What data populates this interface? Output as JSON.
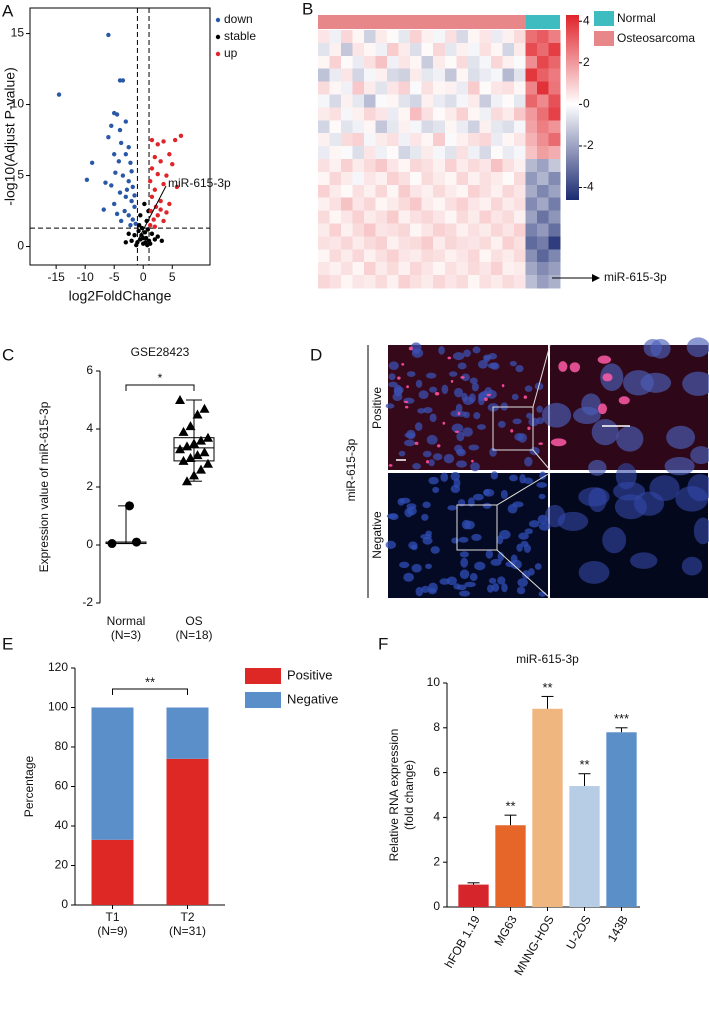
{
  "chart_data": [
    {
      "type": "scatter",
      "panel": "A",
      "xlabel": "log2FoldChange",
      "ylabel": "-log10(Adjust P-value)",
      "xlim": [
        -19.5,
        11.5
      ],
      "xticks": [
        -15,
        -10,
        -5,
        0,
        5
      ],
      "ylim": [
        -1.3,
        16.8
      ],
      "yticks": [
        0,
        5,
        10,
        15
      ],
      "thresholds": {
        "x": [
          -1,
          1
        ],
        "y": 1.3
      },
      "annotation": "miR-615-3p",
      "series": [
        {
          "name": "down",
          "color": "#2a58a6",
          "x": [
            -14.5,
            -6,
            -4,
            -3.5,
            -5,
            -4.5,
            -5.5,
            -4,
            -3,
            -6,
            -3.8,
            -2.5,
            -5,
            -4.2,
            -3,
            -2.2,
            -8.8,
            -9.7,
            -6.5,
            -5.5,
            -4.8,
            -3.5,
            -2.5,
            -1.8,
            -4,
            -3,
            -2,
            -1.5,
            -5,
            -3.2,
            -2.5,
            -1.8,
            -1.3,
            -3.8,
            -2.2,
            -6.8,
            -4.5,
            -1.5,
            -2.8,
            -2
          ],
          "y": [
            10.7,
            14.9,
            11.7,
            11.7,
            9.4,
            9.3,
            8.5,
            8.2,
            8.8,
            7.7,
            7.3,
            7,
            6.5,
            6,
            6.5,
            5.9,
            5.9,
            4.7,
            4.5,
            4.3,
            5.2,
            5,
            4.6,
            4.2,
            3.8,
            3.5,
            3.2,
            2.8,
            3,
            2.5,
            2.2,
            1.9,
            1.6,
            1.8,
            1.5,
            2.6,
            2.3,
            3.6,
            4,
            5.3
          ]
        },
        {
          "name": "stable",
          "color": "#000000",
          "x": [
            -1,
            -0.5,
            0,
            0.5,
            1,
            -1.5,
            1.5,
            -0.8,
            0.3,
            0.8,
            -0.3,
            2,
            -2,
            0.6,
            -0.5,
            0.2,
            -0.7,
            0.9,
            0,
            -1.2,
            1.2,
            2.5,
            -2.5,
            0.4,
            -0.2,
            3.2,
            -3,
            0.7
          ],
          "y": [
            0.3,
            0.5,
            0.2,
            0.6,
            0.4,
            0.8,
            0.9,
            1.1,
            1,
            1.2,
            0.8,
            0.5,
            0.4,
            1.8,
            2.2,
            3,
            1.5,
            2.5,
            0.6,
            0.1,
            0.2,
            0.7,
            0.9,
            0.3,
            1.3,
            0.4,
            0.3,
            0.1
          ]
        },
        {
          "name": "up",
          "color": "#e0242a",
          "x": [
            6.5,
            5.5,
            3.5,
            2.5,
            1.5,
            4.5,
            2,
            3,
            5,
            1.5,
            2.5,
            4,
            1.2,
            3.5,
            2,
            5.8,
            1.5,
            3,
            2.2,
            4.5,
            1.3,
            2.5,
            1.8,
            3.5,
            1.2,
            2,
            4,
            3
          ],
          "y": [
            7.8,
            7.5,
            7.4,
            7.2,
            7.5,
            6.5,
            6.3,
            6,
            5.8,
            5.5,
            5.1,
            5,
            4.6,
            4.4,
            4,
            4.2,
            3.5,
            3.2,
            2.8,
            3,
            2.5,
            2.2,
            1.9,
            1.8,
            1.5,
            1.4,
            2.4,
            2.6
          ]
        }
      ]
    },
    {
      "type": "heatmap",
      "panel": "B",
      "groups": [
        {
          "name": "Osteosarcoma",
          "color": "#e8878a",
          "columns": 18
        },
        {
          "name": "Normal",
          "color": "#3fbcc0",
          "columns": 3
        }
      ],
      "colormap": [
        "#1b2a72",
        "#ffffff",
        "#e0232a"
      ],
      "zlim": [
        -4.6,
        4.3
      ],
      "zticks": [
        -4,
        -2,
        0,
        2,
        4
      ],
      "annotation": "miR-615-3p",
      "rows": [
        [
          0.5,
          -0.3,
          0.8,
          0.2,
          -1.0,
          0.4,
          0.1,
          -0.5,
          0.9,
          0.3,
          -0.2,
          0.6,
          -0.8,
          0.2,
          0.5,
          -0.4,
          0.3,
          0.7,
          2.8,
          3.2,
          2.5
        ],
        [
          -0.6,
          0.3,
          -1.2,
          0.5,
          0.2,
          -0.3,
          1.0,
          0.4,
          -0.7,
          0.1,
          0.8,
          -0.5,
          0.3,
          -0.2,
          0.6,
          0.2,
          -0.9,
          0.4,
          3.5,
          2.9,
          3.8
        ],
        [
          0.2,
          0.9,
          0.1,
          -0.4,
          0.6,
          1.2,
          -0.3,
          0.5,
          0.2,
          -1.1,
          0.4,
          0.1,
          0.7,
          -0.6,
          -0.2,
          0.8,
          0.3,
          -0.1,
          2.2,
          3.6,
          3.0
        ],
        [
          -1.3,
          -0.4,
          0.5,
          -0.9,
          -0.2,
          0.3,
          -0.8,
          -1.0,
          0.4,
          -0.5,
          -0.3,
          -1.2,
          0.2,
          -0.7,
          -0.4,
          -0.2,
          -1.5,
          -0.6,
          3.9,
          3.1,
          2.6
        ],
        [
          0.7,
          0.2,
          -0.3,
          1.1,
          0.4,
          -0.6,
          0.5,
          0.9,
          -0.1,
          0.6,
          0.2,
          0.3,
          -0.4,
          1.0,
          0.1,
          0.5,
          0.6,
          0.2,
          2.4,
          4.0,
          2.7
        ],
        [
          -0.2,
          -0.8,
          0.3,
          -0.5,
          -1.4,
          -0.1,
          0.2,
          -0.6,
          -0.9,
          0.3,
          -0.4,
          -0.7,
          -0.2,
          0.4,
          -1.1,
          -0.3,
          0.1,
          -0.5,
          3.0,
          2.3,
          3.4
        ],
        [
          0.4,
          0.6,
          -0.2,
          0.3,
          0.8,
          0.5,
          -0.4,
          0.2,
          1.3,
          0.6,
          0.1,
          0.4,
          0.9,
          0.2,
          -0.3,
          0.7,
          0.4,
          1.1,
          2.0,
          2.8,
          3.7
        ],
        [
          -0.9,
          0.1,
          -0.6,
          -0.3,
          0.2,
          -1.2,
          -0.5,
          0.3,
          -0.2,
          -0.8,
          -0.6,
          0.2,
          -0.4,
          -1.0,
          0.3,
          -0.5,
          -0.7,
          -0.2,
          1.8,
          2.5,
          2.1
        ],
        [
          0.3,
          -0.5,
          0.7,
          0.9,
          -0.2,
          0.4,
          0.6,
          -0.3,
          0.5,
          0.2,
          1.0,
          -0.1,
          0.3,
          0.6,
          0.8,
          -0.4,
          0.2,
          0.5,
          1.5,
          2.2,
          2.9
        ],
        [
          -0.4,
          0.2,
          -0.1,
          -0.7,
          0.5,
          -0.3,
          0.1,
          -0.9,
          -0.5,
          0.4,
          -0.2,
          -0.6,
          0.6,
          -0.3,
          -0.8,
          0.1,
          -0.4,
          -0.2,
          1.2,
          1.9,
          1.6
        ],
        [
          0.6,
          0.3,
          0.9,
          0.4,
          0.7,
          1.1,
          0.5,
          0.2,
          0.8,
          0.6,
          0.3,
          0.9,
          0.4,
          0.7,
          0.5,
          1.2,
          0.6,
          0.3,
          -1.5,
          -2.0,
          -1.2
        ],
        [
          0.2,
          0.8,
          0.4,
          -0.2,
          0.5,
          0.3,
          0.9,
          0.6,
          0.1,
          0.7,
          0.4,
          0.2,
          0.8,
          0.3,
          0.6,
          0.4,
          0.1,
          0.7,
          -2.2,
          -1.6,
          -2.5
        ],
        [
          0.9,
          0.4,
          0.1,
          0.6,
          0.3,
          0.8,
          0.2,
          1.0,
          0.5,
          0.3,
          0.7,
          0.4,
          0.2,
          0.9,
          0.6,
          0.3,
          0.8,
          0.5,
          -1.8,
          -2.6,
          -2.0
        ],
        [
          0.3,
          0.6,
          1.2,
          0.5,
          0.8,
          0.2,
          0.4,
          0.7,
          1.1,
          0.4,
          0.2,
          0.6,
          0.9,
          0.5,
          0.3,
          0.8,
          0.4,
          0.6,
          -2.5,
          -1.9,
          -2.8
        ],
        [
          0.7,
          0.2,
          0.5,
          0.9,
          0.4,
          0.6,
          1.0,
          0.3,
          0.6,
          0.8,
          0.5,
          0.2,
          0.7,
          0.4,
          0.9,
          0.5,
          0.7,
          0.3,
          -2.0,
          -3.0,
          -2.3
        ],
        [
          0.4,
          0.9,
          0.3,
          0.7,
          1.1,
          0.5,
          0.6,
          0.8,
          0.2,
          0.5,
          0.9,
          0.7,
          0.3,
          0.6,
          0.4,
          0.8,
          0.5,
          0.9,
          -2.7,
          -2.2,
          -3.1
        ],
        [
          0.6,
          0.5,
          0.8,
          0.4,
          0.7,
          0.9,
          0.3,
          0.6,
          0.7,
          1.0,
          0.4,
          0.8,
          0.6,
          0.5,
          0.7,
          0.3,
          0.9,
          0.6,
          -3.2,
          -2.8,
          -4.2
        ],
        [
          0.2,
          0.7,
          0.4,
          0.8,
          0.3,
          0.6,
          0.9,
          0.5,
          0.4,
          0.7,
          0.6,
          0.3,
          0.5,
          0.8,
          0.2,
          0.6,
          0.4,
          0.7,
          -2.4,
          -3.3,
          -2.6
        ],
        [
          0.5,
          0.3,
          0.6,
          0.2,
          0.9,
          0.4,
          0.7,
          0.3,
          0.8,
          0.5,
          0.2,
          0.6,
          0.4,
          0.7,
          0.5,
          0.9,
          0.3,
          0.4,
          -1.9,
          -2.5,
          -2.1
        ],
        [
          0.8,
          0.6,
          0.2,
          0.5,
          0.4,
          0.7,
          0.3,
          0.9,
          0.6,
          0.4,
          0.8,
          0.5,
          0.7,
          0.2,
          0.6,
          0.4,
          0.7,
          0.5,
          -1.4,
          -2.1,
          -1.7
        ]
      ]
    },
    {
      "type": "box",
      "panel": "C",
      "title": "GSE28423",
      "ylabel": "Expression value of miR-615-3p",
      "categories": [
        "Normal",
        "OS"
      ],
      "category_notes": [
        "(N=3)",
        "(N=18)"
      ],
      "ylim": [
        -2,
        6
      ],
      "yticks": [
        -2,
        0,
        2,
        4,
        6
      ],
      "significance": "*",
      "markers": [
        "circle",
        "triangle"
      ],
      "points": [
        [
          0.05,
          0.1,
          1.35
        ],
        [
          5.0,
          4.7,
          4.5,
          4.1,
          3.9,
          3.7,
          3.6,
          3.5,
          3.4,
          3.3,
          3.2,
          3.1,
          3.0,
          2.9,
          2.8,
          2.6,
          2.4,
          2.2
        ]
      ],
      "boxes": [
        {
          "min": 0.05,
          "q1": 0.05,
          "median": 0.1,
          "q3": 0.1,
          "max": 1.35
        },
        {
          "min": 2.2,
          "q1": 2.9,
          "median": 3.35,
          "q3": 3.7,
          "max": 5.0
        }
      ]
    },
    {
      "type": "stacked_bar",
      "panel": "E",
      "ylabel": "Percentage",
      "categories": [
        "T1",
        "T2"
      ],
      "category_notes": [
        "(N=9)",
        "(N=31)"
      ],
      "ylim": [
        0,
        120
      ],
      "yticks": [
        0,
        20,
        40,
        60,
        80,
        100,
        120
      ],
      "significance": "**",
      "legend": "upper right",
      "series": [
        {
          "name": "Positive",
          "color": "#de2826",
          "values": [
            33,
            74
          ]
        },
        {
          "name": "Negative",
          "color": "#5b8fc9",
          "values": [
            67,
            26
          ]
        }
      ]
    },
    {
      "type": "bar",
      "panel": "F",
      "title": "miR-615-3p",
      "ylabel": [
        "Relative RNA expression",
        "(fold change)"
      ],
      "categories": [
        "hFOB 1.19",
        "MG63",
        "MNNG-HOS",
        "U-2OS",
        "143B"
      ],
      "values": [
        1.0,
        3.65,
        8.85,
        5.4,
        7.8
      ],
      "errors": [
        0.08,
        0.45,
        0.55,
        0.55,
        0.2
      ],
      "colors": [
        "#d7262b",
        "#e6662a",
        "#f0b67f",
        "#b7cde6",
        "#5a8fc7"
      ],
      "significance": [
        null,
        "**",
        "**",
        "**",
        "***"
      ],
      "ylim": [
        0,
        10
      ],
      "yticks": [
        0,
        2,
        4,
        6,
        8,
        10
      ]
    }
  ],
  "image_panel": {
    "panel": "D",
    "label": "miR-615-3p",
    "rows": [
      "Positive",
      "Negative"
    ]
  }
}
